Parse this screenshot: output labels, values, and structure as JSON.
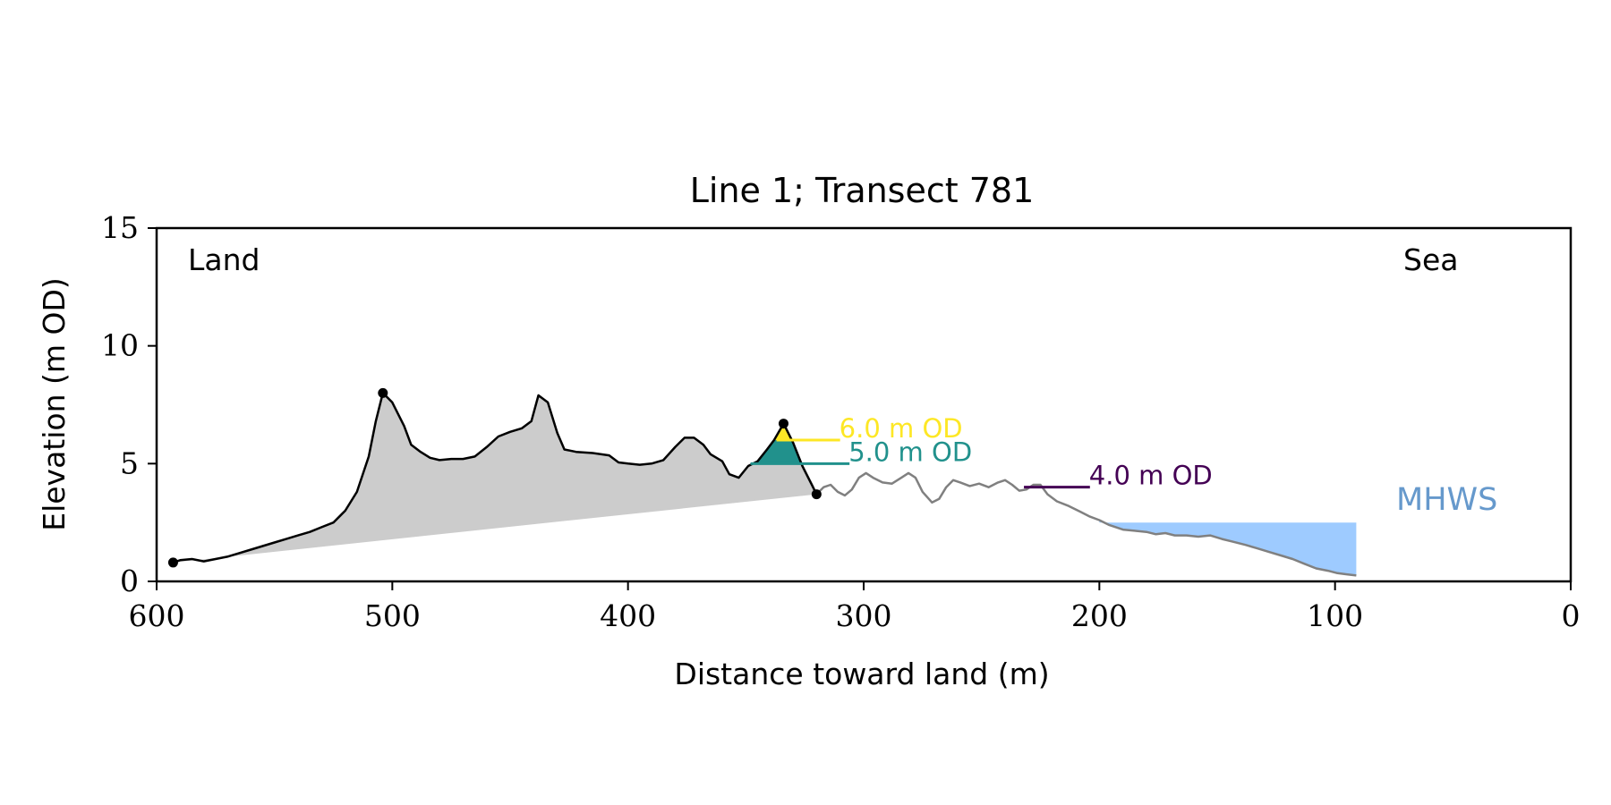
{
  "chart_data": {
    "type": "line",
    "title": "Line 1; Transect 781",
    "xlabel": "Distance toward land (m)",
    "ylabel": "Elevation (m OD)",
    "xlim": [
      600,
      0
    ],
    "ylim": [
      0,
      15
    ],
    "x_ticks": [
      600,
      500,
      400,
      300,
      200,
      100,
      0
    ],
    "y_ticks": [
      0,
      5,
      10,
      15
    ],
    "grid": false,
    "annotations": {
      "land": "Land",
      "sea": "Sea",
      "mhws": "MHWS"
    },
    "colors": {
      "profile_land": "#000000",
      "profile_sea": "#808080",
      "fill_land": "#cccccc",
      "fill_6": "#fde725",
      "fill_5": "#21918c",
      "level_4": "#440154",
      "mhws_fill": "#9ecbff",
      "mhws_label": "#6699cc"
    },
    "profile_land": [
      [
        593,
        0.8
      ],
      [
        590,
        0.9
      ],
      [
        585,
        0.95
      ],
      [
        580,
        0.85
      ],
      [
        575,
        0.95
      ],
      [
        570,
        1.05
      ],
      [
        565,
        1.2
      ],
      [
        560,
        1.35
      ],
      [
        555,
        1.5
      ],
      [
        550,
        1.65
      ],
      [
        545,
        1.8
      ],
      [
        540,
        1.95
      ],
      [
        535,
        2.1
      ],
      [
        530,
        2.3
      ],
      [
        525,
        2.5
      ],
      [
        520,
        3.0
      ],
      [
        515,
        3.8
      ],
      [
        510,
        5.3
      ],
      [
        507,
        6.8
      ],
      [
        504,
        8.0
      ],
      [
        500,
        7.6
      ],
      [
        495,
        6.6
      ],
      [
        492,
        5.8
      ],
      [
        488,
        5.5
      ],
      [
        484,
        5.25
      ],
      [
        480,
        5.15
      ],
      [
        475,
        5.2
      ],
      [
        470,
        5.2
      ],
      [
        465,
        5.3
      ],
      [
        460,
        5.7
      ],
      [
        455,
        6.15
      ],
      [
        450,
        6.35
      ],
      [
        445,
        6.5
      ],
      [
        441,
        6.8
      ],
      [
        438,
        7.9
      ],
      [
        434,
        7.6
      ],
      [
        430,
        6.3
      ],
      [
        427,
        5.6
      ],
      [
        422,
        5.5
      ],
      [
        415,
        5.45
      ],
      [
        408,
        5.35
      ],
      [
        404,
        5.05
      ],
      [
        400,
        5.0
      ],
      [
        395,
        4.95
      ],
      [
        390,
        5.0
      ],
      [
        385,
        5.15
      ],
      [
        380,
        5.7
      ],
      [
        376,
        6.1
      ],
      [
        372,
        6.1
      ],
      [
        368,
        5.8
      ],
      [
        365,
        5.4
      ],
      [
        360,
        5.1
      ],
      [
        357,
        4.55
      ],
      [
        353,
        4.4
      ],
      [
        349,
        4.9
      ],
      [
        345,
        5.1
      ],
      [
        341,
        5.6
      ],
      [
        338,
        6.0
      ],
      [
        334,
        6.7
      ],
      [
        330,
        5.9
      ],
      [
        326,
        4.9
      ],
      [
        322,
        4.1
      ],
      [
        320,
        3.7
      ]
    ],
    "profile_sea": [
      [
        320,
        3.7
      ],
      [
        317,
        4.0
      ],
      [
        314,
        4.1
      ],
      [
        311,
        3.8
      ],
      [
        308,
        3.65
      ],
      [
        305,
        3.9
      ],
      [
        302,
        4.4
      ],
      [
        299,
        4.6
      ],
      [
        296,
        4.4
      ],
      [
        292,
        4.2
      ],
      [
        288,
        4.15
      ],
      [
        284,
        4.4
      ],
      [
        281,
        4.6
      ],
      [
        278,
        4.4
      ],
      [
        275,
        3.8
      ],
      [
        271,
        3.35
      ],
      [
        268,
        3.5
      ],
      [
        265,
        4.0
      ],
      [
        262,
        4.3
      ],
      [
        259,
        4.2
      ],
      [
        255,
        4.05
      ],
      [
        251,
        4.15
      ],
      [
        247,
        4.0
      ],
      [
        243,
        4.2
      ],
      [
        240,
        4.3
      ],
      [
        237,
        4.1
      ],
      [
        234,
        3.85
      ],
      [
        231,
        3.9
      ],
      [
        228,
        4.1
      ],
      [
        225,
        4.1
      ],
      [
        222,
        3.7
      ],
      [
        218,
        3.4
      ],
      [
        213,
        3.2
      ],
      [
        208,
        2.95
      ],
      [
        204,
        2.75
      ],
      [
        200,
        2.6
      ],
      [
        196,
        2.4
      ],
      [
        190,
        2.2
      ],
      [
        185,
        2.15
      ],
      [
        180,
        2.1
      ],
      [
        176,
        2.0
      ],
      [
        172,
        2.05
      ],
      [
        168,
        1.95
      ],
      [
        163,
        1.95
      ],
      [
        158,
        1.9
      ],
      [
        153,
        1.95
      ],
      [
        148,
        1.8
      ],
      [
        144,
        1.7
      ],
      [
        138,
        1.55
      ],
      [
        133,
        1.4
      ],
      [
        128,
        1.25
      ],
      [
        123,
        1.1
      ],
      [
        118,
        0.95
      ],
      [
        113,
        0.75
      ],
      [
        108,
        0.55
      ],
      [
        103,
        0.45
      ],
      [
        99,
        0.35
      ],
      [
        95,
        0.3
      ],
      [
        91,
        0.25
      ]
    ],
    "land_fill_base": [
      [
        593,
        0.8
      ],
      [
        320,
        3.7
      ]
    ],
    "markers": [
      [
        593,
        0.8
      ],
      [
        504,
        8.0
      ],
      [
        334,
        6.7
      ],
      [
        320,
        3.7
      ]
    ],
    "levels": [
      {
        "label": "6.0 m OD",
        "value": 6.0,
        "x_from": 337,
        "x_to": 310
      },
      {
        "label": "5.0 m OD",
        "value": 5.0,
        "x_from": 348,
        "x_to": 306
      },
      {
        "label": "4.0 m OD",
        "value": 4.0,
        "x_from": 232,
        "x_to": 204
      }
    ],
    "mhws": {
      "label": "MHWS",
      "value": 2.5,
      "x_from": 200,
      "x_to": 91
    }
  }
}
